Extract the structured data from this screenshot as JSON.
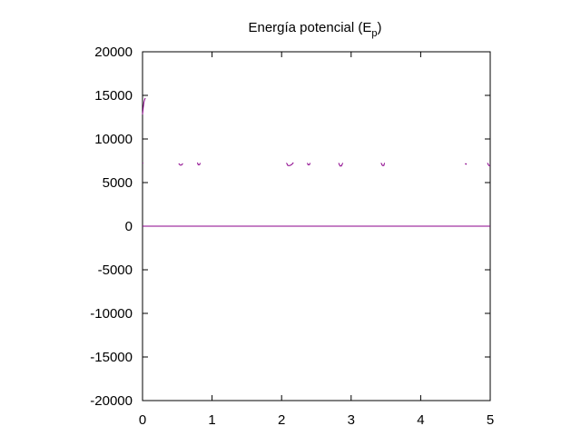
{
  "chart_data": {
    "type": "line",
    "title_main": "Energía potencial (E",
    "title_sub": "p",
    "title_close": ")",
    "xlabel": "",
    "ylabel": "",
    "xlim": [
      0,
      5
    ],
    "ylim": [
      -20000,
      20000
    ],
    "x_ticks": [
      0,
      1,
      2,
      3,
      4,
      5
    ],
    "y_ticks": [
      -20000,
      -15000,
      -10000,
      -5000,
      0,
      5000,
      10000,
      15000,
      20000
    ],
    "grid": false,
    "legend": "none",
    "series_color": "#8b008b",
    "series": [
      {
        "name": "",
        "segments": [
          [
            [
              0.0,
              0
            ],
            [
              5.0,
              0
            ]
          ],
          [
            [
              0.0,
              12800
            ],
            [
              0.01,
              13600
            ],
            [
              0.02,
              14200
            ],
            [
              0.03,
              14500
            ],
            [
              0.04,
              14700
            ]
          ],
          [
            [
              0.0,
              7200
            ],
            [
              0.01,
              7250
            ]
          ],
          [
            [
              0.52,
              7200
            ],
            [
              0.54,
              7000
            ],
            [
              0.56,
              7000
            ],
            [
              0.58,
              7200
            ]
          ],
          [
            [
              0.79,
              7300
            ],
            [
              0.8,
              7050
            ],
            [
              0.82,
              7050
            ],
            [
              0.83,
              7250
            ]
          ],
          [
            [
              2.07,
              7250
            ],
            [
              2.09,
              6950
            ],
            [
              2.12,
              6950
            ],
            [
              2.15,
              7100
            ],
            [
              2.17,
              7300
            ]
          ],
          [
            [
              2.37,
              7250
            ],
            [
              2.38,
              7050
            ],
            [
              2.4,
              7050
            ],
            [
              2.41,
              7250
            ]
          ],
          [
            [
              2.82,
              7250
            ],
            [
              2.84,
              6900
            ],
            [
              2.86,
              6900
            ],
            [
              2.88,
              7250
            ]
          ],
          [
            [
              3.43,
              7250
            ],
            [
              3.45,
              6950
            ],
            [
              3.47,
              6950
            ],
            [
              3.48,
              7250
            ]
          ],
          [
            [
              4.64,
              7200
            ],
            [
              4.65,
              7100
            ],
            [
              4.66,
              7200
            ]
          ],
          [
            [
              4.96,
              7250
            ],
            [
              4.98,
              6950
            ],
            [
              5.0,
              6950
            ]
          ]
        ]
      }
    ]
  }
}
